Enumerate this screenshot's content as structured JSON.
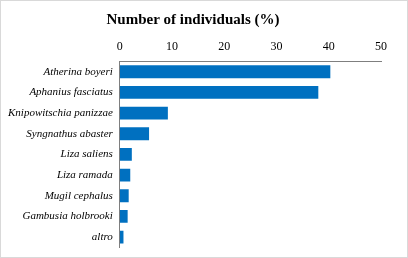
{
  "chart_data": {
    "type": "bar",
    "title": "Number of individuals (%)",
    "orientation": "horizontal",
    "categories": [
      "Atherina boyeri",
      "Aphanius fasciatus",
      "Knipowitschia panizzae",
      "Syngnathus abaster",
      "Liza saliens",
      "Liza ramada",
      "Mugil cephalus",
      "Gambusia holbrooki",
      "altro"
    ],
    "values": [
      40.3,
      38.0,
      9.2,
      5.6,
      2.3,
      2.0,
      1.7,
      1.5,
      0.7
    ],
    "color": "#0070c0",
    "xlim": [
      0,
      50
    ],
    "xticks": [
      0,
      10,
      20,
      30,
      40,
      50
    ],
    "grid": false
  }
}
